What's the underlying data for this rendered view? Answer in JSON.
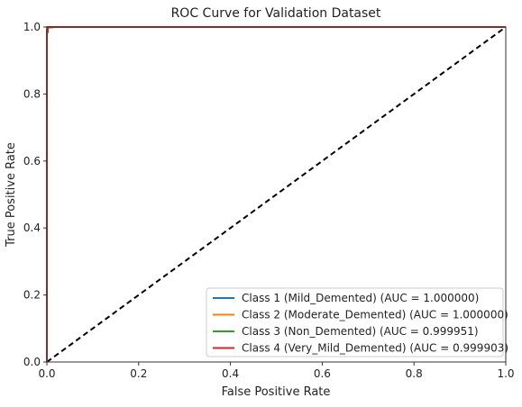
{
  "chart_data": {
    "type": "line",
    "title": "ROC Curve for Validation Dataset",
    "xlabel": "False Positive Rate",
    "ylabel": "True Positive Rate",
    "xlim": [
      0.0,
      1.0
    ],
    "ylim": [
      0.0,
      1.0
    ],
    "xticks": [
      "0.0",
      "0.2",
      "0.4",
      "0.6",
      "0.8",
      "1.0"
    ],
    "yticks": [
      "0.0",
      "0.2",
      "0.4",
      "0.6",
      "0.8",
      "1.0"
    ],
    "grid": false,
    "legend_position": "lower-right",
    "series": [
      {
        "name": "Class 1 (Mild_Demented) (AUC = 1.000000)",
        "color": "#1f77b4",
        "x": [
          0.0,
          0.0,
          1.0
        ],
        "y": [
          0.0,
          1.0,
          1.0
        ]
      },
      {
        "name": "Class 2 (Moderate_Demented) (AUC = 1.000000)",
        "color": "#ff7f0e",
        "x": [
          0.0,
          0.0,
          1.0
        ],
        "y": [
          0.0,
          1.0,
          1.0
        ]
      },
      {
        "name": "Class 3 (Non_Demented) (AUC = 0.999951)",
        "color": "#2ca02c",
        "x": [
          0.0,
          0.0,
          0.002,
          0.002,
          0.02,
          1.0
        ],
        "y": [
          0.0,
          0.99,
          0.99,
          0.998,
          1.0,
          1.0
        ]
      },
      {
        "name": "Class 4 (Very_Mild_Demented) (AUC = 0.999903)",
        "color": "#d62728",
        "x": [
          0.0,
          0.0,
          0.002,
          0.002,
          1.0
        ],
        "y": [
          0.0,
          0.985,
          0.985,
          1.0,
          1.0
        ]
      }
    ],
    "reference_line": {
      "x": [
        0.0,
        1.0
      ],
      "y": [
        0.0,
        1.0
      ],
      "color": "#000000",
      "style": "dashed"
    }
  }
}
